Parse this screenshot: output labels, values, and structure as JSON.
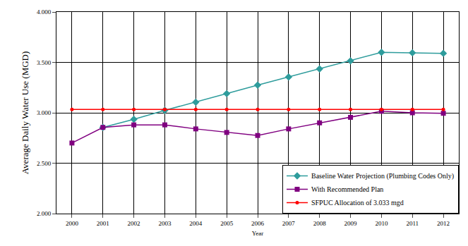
{
  "chart_data": {
    "type": "line",
    "x_label": "Year",
    "y_label": "Average Daily Water Use (MGD)",
    "x": [
      2000,
      2001,
      2002,
      2003,
      2004,
      2005,
      2006,
      2007,
      2008,
      2009,
      2010,
      2011,
      2012
    ],
    "xlim": [
      1999.5,
      2012.5
    ],
    "xticks": [
      2000,
      2001,
      2002,
      2003,
      2004,
      2005,
      2006,
      2007,
      2008,
      2009,
      2010,
      2011,
      2012
    ],
    "ylim": [
      2,
      4
    ],
    "yticks": [
      {
        "value": 2,
        "label": "2.000"
      },
      {
        "value": 2.5,
        "label": "2.500"
      },
      {
        "value": 3,
        "label": "3.000"
      },
      {
        "value": 3.5,
        "label": "3.500"
      },
      {
        "value": 4,
        "label": "4.000"
      }
    ],
    "grid": true,
    "legend": "lower right",
    "series": [
      {
        "name": "Baseline Water Projection (Plumbing Codes Only)",
        "color": "#2e9c9c",
        "marker": "diamond",
        "line_style": "solid",
        "values": [
          null,
          2.855,
          2.935,
          3.025,
          3.105,
          3.19,
          3.275,
          3.355,
          3.435,
          3.515,
          3.6,
          3.595,
          3.59
        ]
      },
      {
        "name": "With Recommended Plan",
        "color": "#800080",
        "marker": "square",
        "line_style": "solid",
        "values": [
          2.7,
          2.855,
          2.88,
          2.88,
          2.84,
          2.805,
          2.775,
          2.84,
          2.9,
          2.955,
          3.015,
          3.0,
          2.995
        ]
      },
      {
        "name": "SFPUC Allocation of 3.033 mgd",
        "color": "#ff0000",
        "marker": "circle",
        "line_style": "solid",
        "values": [
          3.033,
          3.033,
          3.033,
          3.033,
          3.033,
          3.033,
          3.033,
          3.033,
          3.033,
          3.033,
          3.033,
          3.033,
          3.033
        ]
      }
    ]
  }
}
